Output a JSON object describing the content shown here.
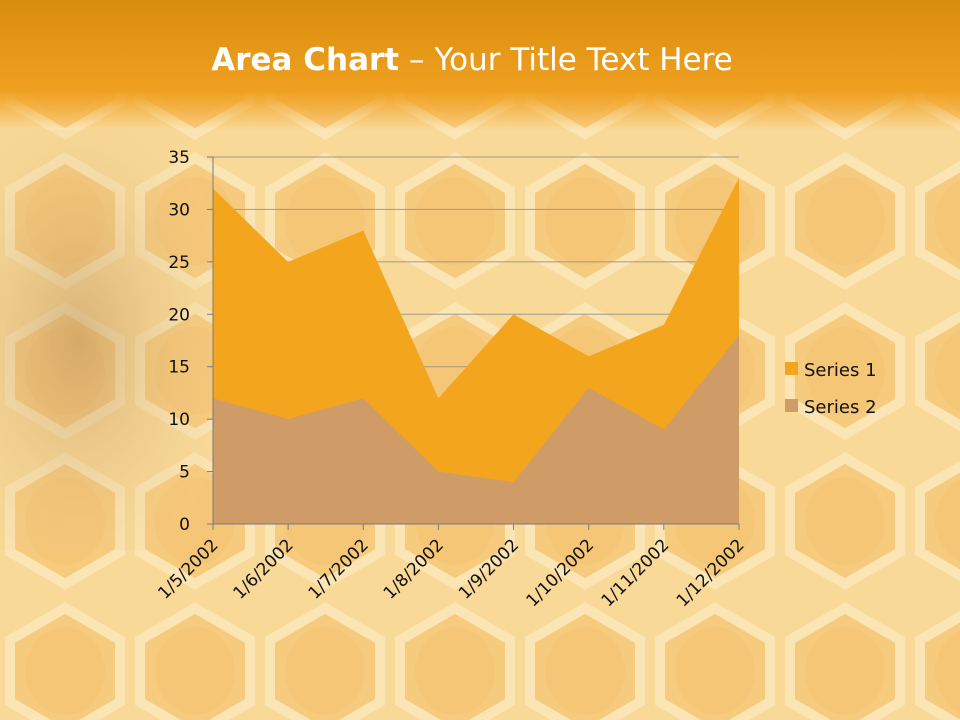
{
  "slide": {
    "title_bold": "Area Chart",
    "title_rest": " – Your Title Text Here"
  },
  "colors": {
    "series1": "#f3a51e",
    "series2": "#cf9b66"
  },
  "chart_data": {
    "type": "area",
    "categories": [
      "1/5/2002",
      "1/6/2002",
      "1/7/2002",
      "1/8/2002",
      "1/9/2002",
      "1/10/2002",
      "1/11/2002",
      "1/12/2002"
    ],
    "series": [
      {
        "name": "Series 1",
        "values": [
          32,
          25,
          28,
          12,
          20,
          16,
          19,
          33
        ]
      },
      {
        "name": "Series 2",
        "values": [
          12,
          10,
          12,
          5,
          4,
          13,
          9,
          18
        ]
      }
    ],
    "yticks": [
      "0",
      "5",
      "10",
      "15",
      "20",
      "25",
      "30",
      "35"
    ],
    "ylim": [
      0,
      35
    ],
    "grid": true,
    "legend": "right"
  }
}
